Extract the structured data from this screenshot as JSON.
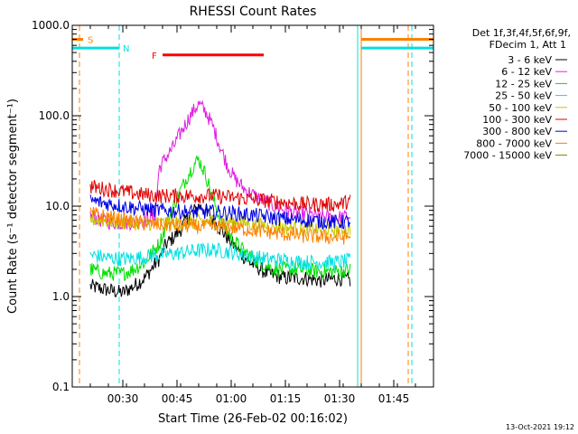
{
  "chart_data": {
    "type": "line",
    "title": "RHESSI Count Rates",
    "xlabel": "Start Time (26-Feb-02 00:16:02)",
    "ylabel": "Count Rate (s⁻¹ detector segment⁻¹)",
    "yscale": "log",
    "ylim": [
      0.1,
      1000
    ],
    "xlim": [
      "00:16",
      "01:56"
    ],
    "xticks": [
      "00:30",
      "00:45",
      "01:00",
      "01:15",
      "01:30",
      "01:45"
    ],
    "yticks": [
      "0.1",
      "1.0",
      "10.0",
      "100.0",
      "1000.0"
    ],
    "grid": false,
    "legend_position": "right",
    "legend_header": [
      "Det 1f,3f,4f,5f,6f,9f,",
      "FDecim 1, Att 1"
    ],
    "footer_date": "13-Oct-2021 19:12",
    "series": [
      {
        "name": "3 - 6 keV",
        "color": "#000000",
        "points": [
          [
            "00:21",
            1.3
          ],
          [
            "00:25",
            1.2
          ],
          [
            "00:30",
            1.1
          ],
          [
            "00:33",
            1.3
          ],
          [
            "00:36",
            1.6
          ],
          [
            "00:40",
            2.6
          ],
          [
            "00:42",
            3.8
          ],
          [
            "00:44",
            4.5
          ],
          [
            "00:46",
            5.5
          ],
          [
            "00:48",
            7.5
          ],
          [
            "00:51",
            10
          ],
          [
            "00:53",
            9
          ],
          [
            "00:55",
            7
          ],
          [
            "00:58",
            5
          ],
          [
            "01:00",
            4
          ],
          [
            "01:02",
            3.2
          ],
          [
            "01:05",
            2.4
          ],
          [
            "01:10",
            1.8
          ],
          [
            "01:15",
            1.6
          ],
          [
            "01:20",
            1.6
          ],
          [
            "01:25",
            1.5
          ],
          [
            "01:30",
            1.6
          ],
          [
            "01:33",
            1.5
          ]
        ]
      },
      {
        "name": "6 - 12 keV",
        "color": "#e020e0",
        "points": [
          [
            "00:21",
            7.8
          ],
          [
            "00:24",
            7.0
          ],
          [
            "00:27",
            6.6
          ],
          [
            "00:30",
            6.6
          ],
          [
            "00:33",
            6.6
          ],
          [
            "00:36",
            7.0
          ],
          [
            "00:39",
            8
          ],
          [
            "00:40",
            26
          ],
          [
            "00:42",
            35
          ],
          [
            "00:44",
            45
          ],
          [
            "00:46",
            65
          ],
          [
            "00:48",
            90
          ],
          [
            "00:50",
            120
          ],
          [
            "00:51",
            135
          ],
          [
            "00:53",
            110
          ],
          [
            "00:55",
            75
          ],
          [
            "00:57",
            45
          ],
          [
            "00:59",
            28
          ],
          [
            "01:01",
            20
          ],
          [
            "01:04",
            15
          ],
          [
            "01:08",
            12
          ],
          [
            "01:12",
            10
          ],
          [
            "01:17",
            8.5
          ],
          [
            "01:22",
            8
          ],
          [
            "01:27",
            7.5
          ],
          [
            "01:31",
            7.5
          ],
          [
            "01:33",
            7.8
          ]
        ]
      },
      {
        "name": "12 - 25 keV",
        "color": "#00e000",
        "points": [
          [
            "00:21",
            2.0
          ],
          [
            "00:25",
            1.8
          ],
          [
            "00:30",
            1.8
          ],
          [
            "00:33",
            2.0
          ],
          [
            "00:36",
            2.4
          ],
          [
            "00:40",
            3.8
          ],
          [
            "00:42",
            6
          ],
          [
            "00:44",
            10
          ],
          [
            "00:46",
            15
          ],
          [
            "00:48",
            22
          ],
          [
            "00:50",
            30
          ],
          [
            "00:51",
            33
          ],
          [
            "00:53",
            22
          ],
          [
            "00:55",
            12
          ],
          [
            "00:57",
            7
          ],
          [
            "01:00",
            4.5
          ],
          [
            "01:03",
            3.3
          ],
          [
            "01:07",
            2.5
          ],
          [
            "01:12",
            2.0
          ],
          [
            "01:18",
            2.0
          ],
          [
            "01:24",
            1.9
          ],
          [
            "01:30",
            1.9
          ],
          [
            "01:33",
            2.0
          ]
        ]
      },
      {
        "name": "25 - 50 keV",
        "color": "#00e0e0",
        "points": [
          [
            "00:21",
            2.9
          ],
          [
            "00:25",
            2.7
          ],
          [
            "00:30",
            2.6
          ],
          [
            "00:35",
            2.7
          ],
          [
            "00:40",
            2.9
          ],
          [
            "00:45",
            3.0
          ],
          [
            "00:50",
            3.2
          ],
          [
            "00:55",
            3.3
          ],
          [
            "01:00",
            3.1
          ],
          [
            "01:05",
            2.8
          ],
          [
            "01:10",
            2.6
          ],
          [
            "01:15",
            2.5
          ],
          [
            "01:20",
            2.4
          ],
          [
            "01:25",
            2.4
          ],
          [
            "01:30",
            2.4
          ],
          [
            "01:33",
            2.5
          ]
        ]
      },
      {
        "name": "50 - 100 keV",
        "color": "#c8c800",
        "points": [
          [
            "00:21",
            7.2
          ],
          [
            "00:30",
            6.6
          ],
          [
            "00:40",
            6.4
          ],
          [
            "00:50",
            6.7
          ],
          [
            "01:00",
            6.8
          ],
          [
            "01:10",
            6.0
          ],
          [
            "01:20",
            5.6
          ],
          [
            "01:30",
            5.5
          ],
          [
            "01:33",
            5.6
          ]
        ]
      },
      {
        "name": "100 - 300 keV",
        "color": "#e00000",
        "points": [
          [
            "00:21",
            16.5
          ],
          [
            "00:25",
            15.5
          ],
          [
            "00:30",
            14.5
          ],
          [
            "00:35",
            13.5
          ],
          [
            "00:40",
            13
          ],
          [
            "00:45",
            13
          ],
          [
            "00:50",
            13
          ],
          [
            "00:55",
            13
          ],
          [
            "01:00",
            12.5
          ],
          [
            "01:05",
            12
          ],
          [
            "01:10",
            11.5
          ],
          [
            "01:15",
            11
          ],
          [
            "01:20",
            10.5
          ],
          [
            "01:25",
            10.5
          ],
          [
            "01:30",
            10.5
          ],
          [
            "01:33",
            11.5
          ]
        ]
      },
      {
        "name": "300 - 800 keV",
        "color": "#0000e0",
        "points": [
          [
            "00:21",
            11.5
          ],
          [
            "00:25",
            10.8
          ],
          [
            "00:30",
            10
          ],
          [
            "00:35",
            9.4
          ],
          [
            "00:40",
            9.0
          ],
          [
            "00:45",
            8.8
          ],
          [
            "00:50",
            8.6
          ],
          [
            "00:55",
            8.6
          ],
          [
            "01:00",
            8.4
          ],
          [
            "01:05",
            8.0
          ],
          [
            "01:10",
            7.6
          ],
          [
            "01:15",
            7.2
          ],
          [
            "01:20",
            7.0
          ],
          [
            "01:25",
            6.8
          ],
          [
            "01:30",
            6.6
          ],
          [
            "01:33",
            6.8
          ]
        ]
      },
      {
        "name": "800 - 7000 keV",
        "color": "#ff8000",
        "points": [
          [
            "00:21",
            8.3
          ],
          [
            "00:25",
            7.7
          ],
          [
            "00:30",
            7.0
          ],
          [
            "00:35",
            6.5
          ],
          [
            "00:40",
            6.2
          ],
          [
            "00:45",
            6.1
          ],
          [
            "00:50",
            6.0
          ],
          [
            "00:55",
            5.9
          ],
          [
            "01:00",
            5.8
          ],
          [
            "01:05",
            5.5
          ],
          [
            "01:10",
            5.2
          ],
          [
            "01:15",
            4.9
          ],
          [
            "01:20",
            4.7
          ],
          [
            "01:25",
            4.6
          ],
          [
            "01:30",
            4.5
          ],
          [
            "01:33",
            4.6
          ]
        ]
      },
      {
        "name": "7000 - 15000 keV",
        "color": "#808000",
        "points": []
      }
    ],
    "markers": [
      {
        "label": "S",
        "color": "#ff8000",
        "start": "00:16",
        "end": "00:19",
        "value": 700
      },
      {
        "label": "N",
        "color": "#00e0e0",
        "start": "00:16",
        "end": "00:29",
        "value": 560
      },
      {
        "label": "F",
        "color": "#ff0000",
        "start": "00:41",
        "end": "01:09",
        "value": 470
      },
      {
        "label": "",
        "color": "#ff8000",
        "start": "01:36",
        "end": "01:56",
        "value": 700
      },
      {
        "label": "",
        "color": "#00e0e0",
        "start": "01:36",
        "end": "01:56",
        "value": 560
      }
    ],
    "vertical_lines": [
      {
        "at": "00:16",
        "color": "#00e0e0",
        "style": "solid"
      },
      {
        "at": "00:18",
        "color": "#ff8000",
        "style": "dashed"
      },
      {
        "at": "00:29",
        "color": "#00e0e0",
        "style": "dashed"
      },
      {
        "at": "01:35",
        "color": "#00e0e0",
        "style": "solid"
      },
      {
        "at": "01:36",
        "color": "#ff8000",
        "style": "solid"
      },
      {
        "at": "01:49",
        "color": "#ff8000",
        "style": "dashed"
      },
      {
        "at": "01:50",
        "color": "#00e0e0",
        "style": "dashed"
      }
    ]
  }
}
